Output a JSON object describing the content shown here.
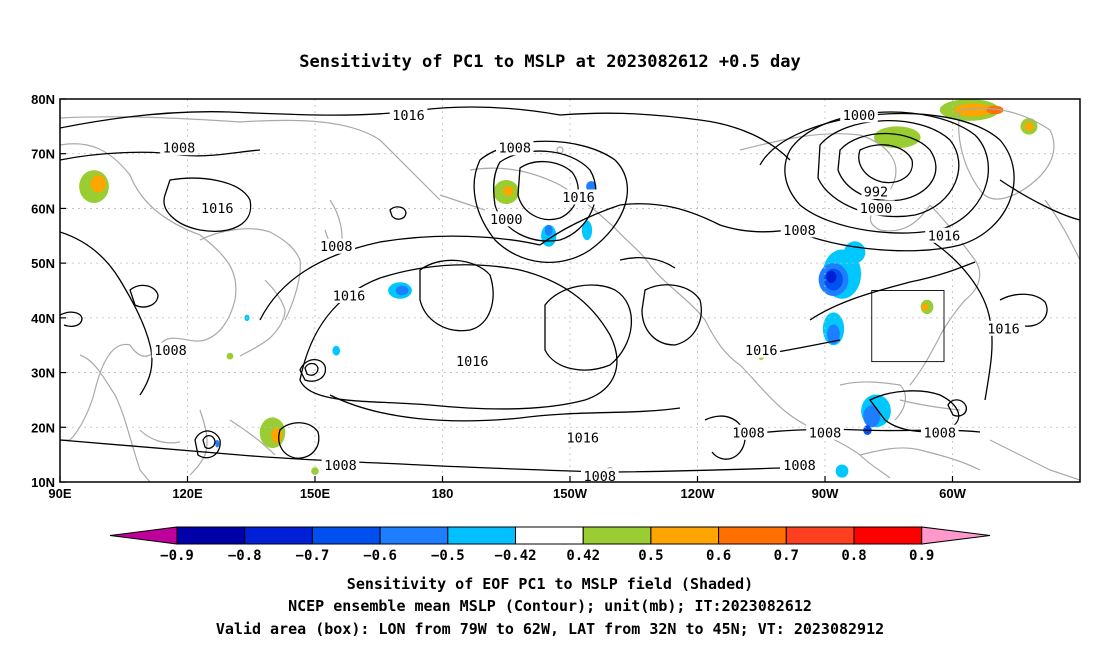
{
  "title": "Sensitivity of PC1 to MSLP at 2023082612 +0.5 day",
  "map": {
    "lon_ticks": [
      "90E",
      "120E",
      "150E",
      "180",
      "150W",
      "120W",
      "90W",
      "60W"
    ],
    "lat_ticks": [
      "80N",
      "70N",
      "60N",
      "50N",
      "40N",
      "30N",
      "20N",
      "10N"
    ],
    "valid_box": {
      "lon_west": "79W",
      "lon_east": "62W",
      "lat_south": "32N",
      "lat_north": "45N"
    },
    "contour_labels": [
      {
        "text": "1016",
        "lon": 172,
        "lat": 77
      },
      {
        "text": "1008",
        "lon": 118,
        "lat": 71
      },
      {
        "text": "1016",
        "lon": 127,
        "lat": 60
      },
      {
        "text": "1008",
        "lon": 197,
        "lat": 71
      },
      {
        "text": "1000",
        "lon": 195,
        "lat": 58
      },
      {
        "text": "1016",
        "lon": 212,
        "lat": 62
      },
      {
        "text": "1008",
        "lon": 155,
        "lat": 53
      },
      {
        "text": "1016",
        "lon": 158,
        "lat": 44
      },
      {
        "text": "1008",
        "lon": 116,
        "lat": 34
      },
      {
        "text": "1016",
        "lon": 187,
        "lat": 32
      },
      {
        "text": "1016",
        "lon": 213,
        "lat": 18
      },
      {
        "text": "1008",
        "lon": 156,
        "lat": 13
      },
      {
        "text": "1008",
        "lon": 217,
        "lat": 11
      },
      {
        "text": "1000",
        "lon": 278,
        "lat": 77
      },
      {
        "text": "992",
        "lon": 282,
        "lat": 63
      },
      {
        "text": "1000",
        "lon": 282,
        "lat": 60
      },
      {
        "text": "1008",
        "lon": 264,
        "lat": 56
      },
      {
        "text": "1016",
        "lon": 298,
        "lat": 55
      },
      {
        "text": "1016",
        "lon": 255,
        "lat": 34
      },
      {
        "text": "1016",
        "lon": 312,
        "lat": 38
      },
      {
        "text": "1008",
        "lon": 252,
        "lat": 19
      },
      {
        "text": "1008",
        "lon": 270,
        "lat": 19
      },
      {
        "text": "1008",
        "lon": 297,
        "lat": 19
      },
      {
        "text": "1008",
        "lon": 264,
        "lat": 13
      }
    ],
    "shaded_patches": [
      {
        "lon": 98,
        "lat": 64,
        "rx": 3.5,
        "ry": 3,
        "level": 0.5
      },
      {
        "lon": 99,
        "lat": 64.5,
        "rx": 1.8,
        "ry": 1.6,
        "level": 0.6
      },
      {
        "lon": 195,
        "lat": 63,
        "rx": 3,
        "ry": 2.2,
        "level": 0.5
      },
      {
        "lon": 195.5,
        "lat": 63.2,
        "rx": 1.2,
        "ry": 0.9,
        "level": 0.6
      },
      {
        "lon": 140,
        "lat": 19,
        "rx": 3,
        "ry": 2.8,
        "level": 0.5
      },
      {
        "lon": 141,
        "lat": 18.5,
        "rx": 1.3,
        "ry": 1.4,
        "level": 0.6
      },
      {
        "lon": 287,
        "lat": 73,
        "rx": 5.5,
        "ry": 2,
        "level": 0.5
      },
      {
        "lon": 304,
        "lat": 78,
        "rx": 7,
        "ry": 2,
        "level": 0.5
      },
      {
        "lon": 305,
        "lat": 78,
        "rx": 4.5,
        "ry": 1.2,
        "level": 0.6
      },
      {
        "lon": 310,
        "lat": 78,
        "rx": 2,
        "ry": 0.8,
        "level": 0.7
      },
      {
        "lon": 318,
        "lat": 75,
        "rx": 2,
        "ry": 1.5,
        "level": 0.5
      },
      {
        "lon": 318,
        "lat": 75,
        "rx": 1,
        "ry": 0.8,
        "level": 0.6
      },
      {
        "lon": 294,
        "lat": 42,
        "rx": 1.5,
        "ry": 1.3,
        "level": 0.5
      },
      {
        "lon": 293.5,
        "lat": 42,
        "rx": 0.7,
        "ry": 0.7,
        "level": 0.6
      },
      {
        "lon": 130,
        "lat": 33,
        "rx": 0.8,
        "ry": 0.6,
        "level": 0.5
      },
      {
        "lon": 150,
        "lat": 12,
        "rx": 0.9,
        "ry": 0.7,
        "level": 0.5
      },
      {
        "lon": 255,
        "lat": 33,
        "rx": 0.7,
        "ry": 0.7,
        "level": 0.5
      },
      {
        "lon": 274,
        "lat": 48,
        "rx": 4.5,
        "ry": 4.5,
        "level": -0.42
      },
      {
        "lon": 272,
        "lat": 47,
        "rx": 3.5,
        "ry": 3,
        "level": -0.5
      },
      {
        "lon": 272,
        "lat": 47,
        "rx": 2.2,
        "ry": 2,
        "level": -0.6
      },
      {
        "lon": 271.5,
        "lat": 47.5,
        "rx": 1.2,
        "ry": 1.1,
        "level": -0.7
      },
      {
        "lon": 277,
        "lat": 52,
        "rx": 2.5,
        "ry": 2,
        "level": -0.42
      },
      {
        "lon": 272,
        "lat": 38,
        "rx": 2.5,
        "ry": 3,
        "level": -0.42
      },
      {
        "lon": 272,
        "lat": 37,
        "rx": 1.5,
        "ry": 1.8,
        "level": -0.5
      },
      {
        "lon": 282,
        "lat": 23,
        "rx": 3.5,
        "ry": 3,
        "level": -0.42
      },
      {
        "lon": 281,
        "lat": 22,
        "rx": 2,
        "ry": 2,
        "level": -0.5
      },
      {
        "lon": 280,
        "lat": 19.5,
        "rx": 1,
        "ry": 0.9,
        "level": -0.6
      },
      {
        "lon": 274,
        "lat": 12,
        "rx": 1.5,
        "ry": 1.2,
        "level": -0.42
      },
      {
        "lon": 170,
        "lat": 45,
        "rx": 2.8,
        "ry": 1.5,
        "level": -0.42
      },
      {
        "lon": 170.5,
        "lat": 45,
        "rx": 1.5,
        "ry": 0.9,
        "level": -0.5
      },
      {
        "lon": 205,
        "lat": 55,
        "rx": 1.8,
        "ry": 2,
        "level": -0.42
      },
      {
        "lon": 205,
        "lat": 56,
        "rx": 0.9,
        "ry": 1,
        "level": -0.5
      },
      {
        "lon": 214,
        "lat": 56,
        "rx": 1.2,
        "ry": 1.8,
        "level": -0.42
      },
      {
        "lon": 215,
        "lat": 64,
        "rx": 1.2,
        "ry": 1,
        "level": -0.5
      },
      {
        "lon": 155,
        "lat": 34,
        "rx": 0.9,
        "ry": 0.9,
        "level": -0.42
      },
      {
        "lon": 134,
        "lat": 40,
        "rx": 0.6,
        "ry": 0.6,
        "level": -0.42
      },
      {
        "lon": 214,
        "lat": 11,
        "rx": 0.8,
        "ry": 1.2,
        "level": -0.42
      },
      {
        "lon": 127,
        "lat": 17,
        "rx": 0.5,
        "ry": 0.7,
        "level": -0.5
      }
    ]
  },
  "colorbar": {
    "labels": [
      "−0.9",
      "−0.8",
      "−0.7",
      "−0.6",
      "−0.5",
      "−0.42",
      "0.42",
      "0.5",
      "0.6",
      "0.7",
      "0.8",
      "0.9"
    ],
    "colors": [
      "#c0009a",
      "#0000a8",
      "#0020d8",
      "#0050f0",
      "#1d7eff",
      "#00c0ff",
      "#ffffff",
      "#9acd32",
      "#ffa500",
      "#ff7000",
      "#ff4020",
      "#ff0000",
      "#ff99cc"
    ]
  },
  "footer": {
    "line1": "Sensitivity of EOF PC1 to MSLP field (Shaded)",
    "line2": "NCEP ensemble mean MSLP (Contour); unit(mb); IT:2023082612",
    "line3": "Valid area (box): LON from 79W to 62W, LAT from 32N to 45N; VT: 2023082912"
  }
}
